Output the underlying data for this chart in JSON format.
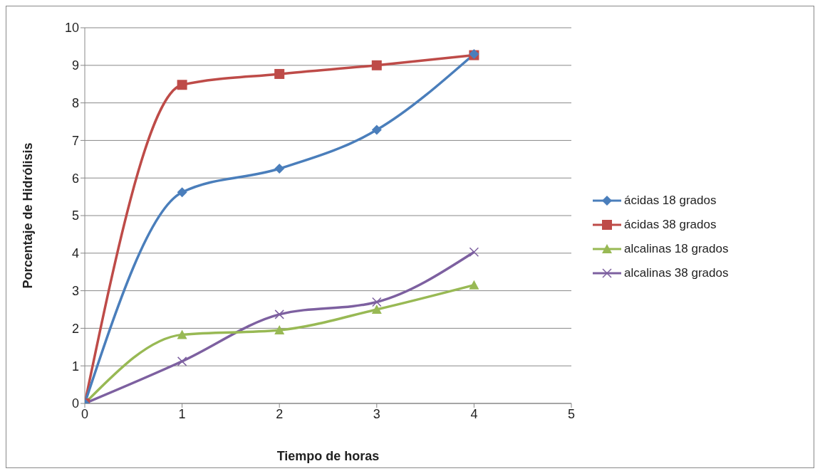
{
  "chart_data": {
    "type": "line",
    "xlabel": "Tiempo de horas",
    "ylabel": "Porcentaje de Hidrólisis",
    "x": [
      0,
      1,
      2,
      3,
      4
    ],
    "xlim": [
      0,
      5
    ],
    "xticks": [
      0,
      1,
      2,
      3,
      4,
      5
    ],
    "ylim": [
      0,
      10
    ],
    "yticks": [
      0,
      1,
      2,
      3,
      4,
      5,
      6,
      7,
      8,
      9,
      10
    ],
    "grid": "y",
    "legend": "right",
    "series": [
      {
        "name": "ácidas 18 grados",
        "color": "#4a7ebb",
        "marker": "diamond",
        "values": [
          0,
          5.62,
          6.25,
          7.28,
          9.3
        ]
      },
      {
        "name": "ácidas 38 grados",
        "color": "#be4b48",
        "marker": "square",
        "values": [
          0,
          8.48,
          8.77,
          9.0,
          9.27
        ]
      },
      {
        "name": "alcalinas 18 grados",
        "color": "#98b954",
        "marker": "triangle",
        "values": [
          0,
          1.83,
          1.95,
          2.5,
          3.15
        ]
      },
      {
        "name": "alcalinas 38 grados",
        "color": "#7d60a0",
        "marker": "cross",
        "values": [
          0,
          1.12,
          2.37,
          2.7,
          4.03
        ]
      }
    ]
  }
}
